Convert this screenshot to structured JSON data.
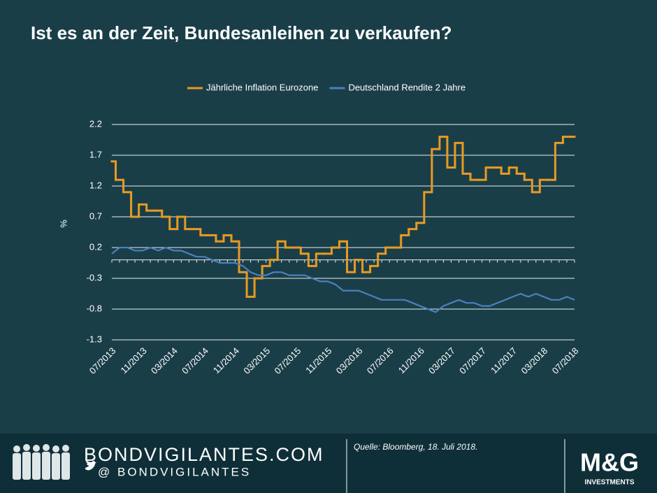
{
  "chart_data": {
    "type": "line",
    "title": "Ist es an der Zeit, Bundesanleihen zu verkaufen?",
    "y_label": "%",
    "categories": [
      "07/2013",
      null,
      null,
      null,
      "11/2013",
      null,
      null,
      null,
      "03/2014",
      null,
      null,
      null,
      "07/2014",
      null,
      null,
      null,
      "11/2014",
      null,
      null,
      null,
      "03/2015",
      null,
      null,
      null,
      "07/2015",
      null,
      null,
      null,
      "11/2015",
      null,
      null,
      null,
      "03/2016",
      null,
      null,
      null,
      "07/2016",
      null,
      null,
      null,
      "11/2016",
      null,
      null,
      null,
      "03/2017",
      null,
      null,
      null,
      "07/2017",
      null,
      null,
      null,
      "11/2017",
      null,
      null,
      null,
      "03/2018",
      null,
      null,
      null,
      "07/2018"
    ],
    "series": [
      {
        "name": "Jährliche Inflation Eurozone",
        "color": "#e89a22",
        "step": true,
        "values": [
          1.6,
          1.3,
          1.1,
          0.7,
          0.9,
          0.8,
          0.8,
          0.7,
          0.5,
          0.7,
          0.5,
          0.5,
          0.4,
          0.4,
          0.3,
          0.4,
          0.3,
          -0.2,
          -0.6,
          -0.3,
          -0.1,
          0.0,
          0.3,
          0.2,
          0.2,
          0.1,
          -0.1,
          0.1,
          0.1,
          0.2,
          0.3,
          -0.2,
          0.0,
          -0.2,
          -0.1,
          0.1,
          0.2,
          0.2,
          0.4,
          0.5,
          0.6,
          1.1,
          1.8,
          2.0,
          1.5,
          1.9,
          1.4,
          1.3,
          1.3,
          1.5,
          1.5,
          1.4,
          1.5,
          1.4,
          1.3,
          1.1,
          1.3,
          1.3,
          1.9,
          2.0,
          2.0
        ]
      },
      {
        "name": "Deutschland Rendite 2 Jahre",
        "color": "#4a80bd",
        "step": false,
        "values": [
          0.1,
          0.2,
          0.2,
          0.15,
          0.15,
          0.2,
          0.15,
          0.2,
          0.15,
          0.15,
          0.1,
          0.05,
          0.05,
          0.0,
          -0.05,
          -0.05,
          -0.05,
          -0.1,
          -0.2,
          -0.25,
          -0.25,
          -0.2,
          -0.2,
          -0.25,
          -0.25,
          -0.25,
          -0.3,
          -0.35,
          -0.35,
          -0.4,
          -0.5,
          -0.5,
          -0.5,
          -0.55,
          -0.6,
          -0.65,
          -0.65,
          -0.65,
          -0.65,
          -0.7,
          -0.75,
          -0.8,
          -0.85,
          -0.75,
          -0.7,
          -0.65,
          -0.7,
          -0.7,
          -0.75,
          -0.75,
          -0.7,
          -0.65,
          -0.6,
          -0.55,
          -0.6,
          -0.55,
          -0.6,
          -0.65,
          -0.65,
          -0.6,
          -0.65
        ]
      }
    ],
    "ylim": [
      -1.3,
      2.2
    ],
    "yticks": [
      -1.3,
      -0.8,
      -0.3,
      0.2,
      0.7,
      1.2,
      1.7,
      2.2
    ],
    "grid": true,
    "legend": "top"
  },
  "footer": {
    "site": "BONDVIGILANTES.COM",
    "handle": "@ BONDVIGILANTES",
    "source": "Quelle: Bloomberg, 18. Juli 2018.",
    "brand": "M&G",
    "brand_sub": "INVESTMENTS"
  }
}
